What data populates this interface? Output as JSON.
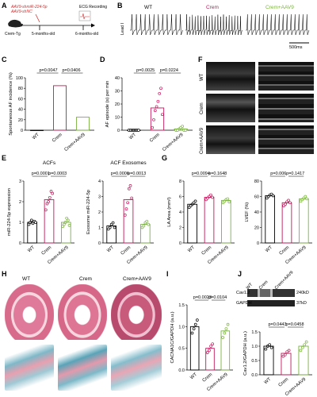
{
  "panel_labels": [
    "A",
    "B",
    "C",
    "D",
    "E",
    "F",
    "G",
    "H",
    "I",
    "J"
  ],
  "panelA": {
    "treatment_line1": "AAV9-shmiR-224-5p",
    "treatment_line2": "AAV9-shNC",
    "mouse_label": "Crem-Tg",
    "time1": "5-months-old",
    "time2": "6-months-old",
    "recording": "ECG Recording"
  },
  "panelB": {
    "groups": [
      "WT",
      "Crem",
      "Crem+AAV9"
    ],
    "lead": "Lead I",
    "scale": "500ms"
  },
  "panelF": {
    "groups": [
      "WT",
      "Crem",
      "Crem+AAV9"
    ]
  },
  "panelH": {
    "groups": [
      "WT",
      "Crem",
      "Crem+AAV9"
    ]
  },
  "panelJ": {
    "lanes": [
      "WT",
      "Crem",
      "Crem+AAV9"
    ],
    "bands": [
      "Cav1.2",
      "GAPDH"
    ],
    "sizes": [
      "240kD",
      "37kD"
    ]
  },
  "chart_data": [
    {
      "id": "C",
      "type": "bar",
      "categories": [
        "WT",
        "Crem",
        "Crem+AAV9"
      ],
      "values": [
        0,
        85,
        25
      ],
      "ylabel": "Spontaneous AF incidence (%)",
      "ylim": [
        0,
        100
      ],
      "yticks": [
        "0",
        "20",
        "40",
        "60",
        "80",
        "100"
      ],
      "pvalues": [
        "p=0.0047",
        "p=0.0406"
      ]
    },
    {
      "id": "D",
      "type": "bar",
      "categories": [
        "WT",
        "Crem",
        "Crem+AAV9"
      ],
      "values": [
        0,
        17,
        1
      ],
      "points": [
        [
          0,
          0,
          0,
          0,
          0,
          0,
          0
        ],
        [
          2,
          8,
          15,
          18,
          22,
          28,
          32,
          12
        ],
        [
          0,
          0,
          1,
          2,
          3,
          0,
          0
        ]
      ],
      "ylabel": "AF episode (s) per min",
      "ylim": [
        0,
        40
      ],
      "yticks": [
        "0",
        "10",
        "20",
        "30",
        "40"
      ],
      "pvalues": [
        "p=0.0025",
        "p=0.0224"
      ]
    },
    {
      "id": "E1",
      "type": "bar",
      "title": "ACFs",
      "categories": [
        "WT",
        "Crem",
        "Crem+AAV9"
      ],
      "values": [
        1.0,
        2.1,
        1.0
      ],
      "points": [
        [
          0.9,
          1.0,
          1.1,
          0.95,
          1.05,
          1.0
        ],
        [
          1.6,
          1.9,
          2.0,
          2.2,
          2.5,
          2.4
        ],
        [
          0.8,
          0.9,
          1.0,
          1.2,
          1.1,
          0.85
        ]
      ],
      "ylabel": "miR-224-5p expression",
      "ylim": [
        0,
        3
      ],
      "yticks": [
        "0",
        "1",
        "2",
        "3"
      ],
      "pvalues": [
        "p=0.0001",
        "p=0.0003"
      ]
    },
    {
      "id": "E2",
      "type": "bar",
      "title": "ACF Exosomes",
      "categories": [
        "WT",
        "Crem",
        "Crem+AAV9"
      ],
      "values": [
        1.1,
        2.8,
        1.2
      ],
      "points": [
        [
          0.9,
          1.0,
          1.2,
          1.3,
          1.0
        ],
        [
          1.8,
          2.2,
          2.6,
          3.5,
          3.7,
          2.9
        ],
        [
          1.0,
          1.1,
          1.3,
          1.4,
          1.2
        ]
      ],
      "ylabel": "Exosome miR-224-5p",
      "ylim": [
        0,
        4
      ],
      "yticks": [
        "0",
        "1",
        "2",
        "3",
        "4"
      ],
      "pvalues": [
        "p=0.0006",
        "p=0.0013"
      ]
    },
    {
      "id": "G1",
      "type": "bar",
      "categories": [
        "WT",
        "Crem",
        "Crem+AAV9"
      ],
      "values": [
        5.0,
        5.9,
        5.5
      ],
      "points": [
        [
          4.6,
          4.8,
          5.0,
          5.2,
          5.4
        ],
        [
          5.6,
          5.8,
          6.0,
          6.2,
          5.9
        ],
        [
          5.2,
          5.4,
          5.6,
          5.7,
          5.3
        ]
      ],
      "ylabel": "LA Area (mm²)",
      "ylim": [
        0,
        8
      ],
      "yticks": [
        "0",
        "2",
        "4",
        "6",
        "8"
      ],
      "pvalues": [
        "p=0.0094",
        "p=0.1648"
      ]
    },
    {
      "id": "G2",
      "type": "bar",
      "categories": [
        "WT",
        "Crem",
        "Crem+AAV9"
      ],
      "values": [
        61,
        52,
        57
      ],
      "points": [
        [
          58,
          60,
          62,
          63,
          61
        ],
        [
          48,
          50,
          53,
          55,
          52
        ],
        [
          54,
          56,
          58,
          60,
          57
        ]
      ],
      "ylabel": "LVEF (%)",
      "ylim": [
        0,
        80
      ],
      "yticks": [
        "0",
        "20",
        "40",
        "60",
        "80"
      ],
      "pvalues": [
        "p=0.006",
        "p=0.1417"
      ]
    },
    {
      "id": "I",
      "type": "bar",
      "categories": [
        "WT",
        "Crem",
        "Crem+AAV9"
      ],
      "values": [
        1.0,
        0.5,
        0.9
      ],
      "points": [
        [
          0.85,
          0.95,
          1.05,
          1.15
        ],
        [
          0.4,
          0.45,
          0.55,
          0.6
        ],
        [
          0.75,
          0.85,
          0.95,
          1.05
        ]
      ],
      "ylabel": "CACNA1C/GAPDH (a.u.)",
      "ylim": [
        0,
        1.5
      ],
      "yticks": [
        "0.0",
        "0.5",
        "1.0",
        "1.5"
      ],
      "pvalues": [
        "p=0.0023",
        "p=0.0104"
      ]
    },
    {
      "id": "J",
      "type": "bar",
      "categories": [
        "WT",
        "Crem",
        "Crem+AAV9"
      ],
      "values": [
        1.0,
        0.75,
        1.0
      ],
      "points": [
        [
          0.9,
          1.0,
          1.05,
          0.95
        ],
        [
          0.65,
          0.7,
          0.8,
          0.85
        ],
        [
          0.85,
          0.95,
          1.05,
          1.15
        ]
      ],
      "ylabel": "Cav1.2/GAPDH (a.u.)",
      "ylim": [
        0,
        1.5
      ],
      "yticks": [
        "0.0",
        "0.5",
        "1.0",
        "1.5"
      ],
      "pvalues": [
        "p=0.0443",
        "p=0.0458"
      ]
    }
  ],
  "colors": {
    "wt": "#000000",
    "crem": "#c2185b",
    "aav9": "#7cb342",
    "red_text": "#d32f2f"
  }
}
